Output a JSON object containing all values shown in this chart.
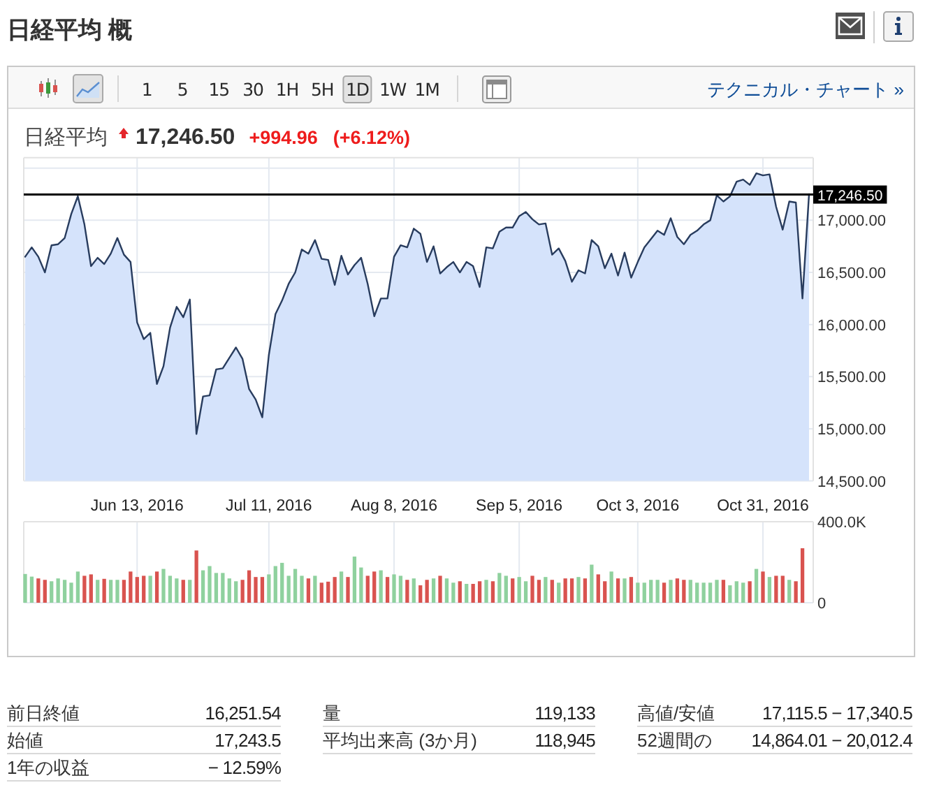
{
  "chart_data": [
    {
      "type": "area",
      "title": "日経平均 概",
      "subtitle": "日経平均",
      "annotations": [
        "17,246.50",
        "+994.96",
        "(+6.12%)",
        "1",
        "5",
        "15",
        "30",
        "1H",
        "5H",
        "1D",
        "1W",
        "1M",
        "テクニカル・チャート »"
      ],
      "categories": [
        null,
        null,
        null,
        null,
        null,
        null,
        null,
        null,
        null,
        null,
        null,
        null,
        null,
        null,
        null,
        null,
        null,
        "Jun 13, 2016",
        null,
        null,
        null,
        null,
        null,
        null,
        null,
        null,
        null,
        null,
        null,
        null,
        null,
        null,
        null,
        null,
        null,
        null,
        null,
        "Jul 11, 2016",
        null,
        null,
        null,
        null,
        null,
        null,
        null,
        null,
        null,
        null,
        null,
        null,
        null,
        null,
        null,
        null,
        null,
        null,
        "Aug 8, 2016",
        null,
        null,
        null,
        null,
        null,
        null,
        null,
        null,
        null,
        null,
        null,
        null,
        null,
        null,
        null,
        null,
        null,
        null,
        "Sep 5, 2016",
        null,
        null,
        null,
        null,
        null,
        null,
        null,
        null,
        null,
        null,
        null,
        null,
        null,
        null,
        null,
        null,
        null,
        "Oct 3, 2016",
        null,
        null,
        null,
        null,
        null,
        null,
        null,
        null,
        null,
        null,
        null,
        null,
        null,
        null,
        null,
        null,
        null,
        null,
        "Oct 31, 2016",
        null,
        null,
        null,
        null,
        null,
        null,
        null
      ],
      "series": [
        {
          "color": "#283c5e",
          "values": [
            16650,
            16740,
            16650,
            16500,
            16760,
            16770,
            16830,
            17060,
            17230,
            16960,
            16560,
            16640,
            16580,
            16680,
            16830,
            16670,
            16600,
            16020,
            15860,
            15920,
            15430,
            15600,
            15970,
            16170,
            16070,
            16240,
            14950,
            15310,
            15320,
            15570,
            15580,
            15680,
            15780,
            15670,
            15380,
            15280,
            15110,
            15710,
            16100,
            16230,
            16390,
            16500,
            16720,
            16680,
            16810,
            16630,
            16620,
            16380,
            16660,
            16480,
            16570,
            16640,
            16390,
            16080,
            16250,
            16250,
            16650,
            16760,
            16740,
            16920,
            16870,
            16600,
            16750,
            16490,
            16550,
            16600,
            16500,
            16600,
            16560,
            16360,
            16740,
            16730,
            16890,
            16930,
            16930,
            17040,
            17080,
            17010,
            16960,
            16970,
            16670,
            16730,
            16610,
            16410,
            16520,
            16490,
            16810,
            16750,
            16540,
            16680,
            16470,
            16690,
            16450,
            16600,
            16740,
            16820,
            16900,
            16860,
            17020,
            16840,
            16770,
            16860,
            16900,
            16960,
            17000,
            17240,
            17180,
            17230,
            17370,
            17390,
            17340,
            17450,
            17430,
            17440,
            17130,
            16910,
            17180,
            17170,
            16250,
            17250
          ]
        }
      ],
      "ylim": [
        14500,
        17600
      ],
      "yticks": [
        {
          "value": 14500,
          "label": "14,500.00"
        },
        {
          "value": 15000,
          "label": "15,000.00"
        },
        {
          "value": 15500,
          "label": "15,500.00"
        },
        {
          "value": 16000,
          "label": "16,000.00"
        },
        {
          "value": 16500,
          "label": "16,500.00"
        },
        {
          "value": 17000,
          "label": "17,000.00"
        },
        {
          "value": 17500,
          "label": null
        }
      ],
      "ref_lines": [
        {
          "axis": "y",
          "value": 17246.5,
          "label": "17,246.50",
          "color": "#000000"
        }
      ],
      "grid": true
    },
    {
      "type": "bar",
      "categories": [
        null,
        null,
        null,
        null,
        null,
        null,
        null,
        null,
        null,
        null,
        null,
        null,
        null,
        null,
        null,
        null,
        null,
        null,
        null,
        null,
        null,
        null,
        null,
        null,
        null,
        null,
        null,
        null,
        null,
        null,
        null,
        null,
        null,
        null,
        null,
        null,
        null,
        null,
        null,
        null,
        null,
        null,
        null,
        null,
        null,
        null,
        null,
        null,
        null,
        null,
        null,
        null,
        null,
        null,
        null,
        null,
        null,
        null,
        null,
        null,
        null,
        null,
        null,
        null,
        null,
        null,
        null,
        null,
        null,
        null,
        null,
        null,
        null,
        null,
        null,
        null,
        null,
        null,
        null,
        null,
        null,
        null,
        null,
        null,
        null,
        null,
        null,
        null,
        null,
        null,
        null,
        null,
        null,
        null,
        null,
        null,
        null,
        null,
        null,
        null,
        null,
        null,
        null,
        null,
        null,
        null,
        null,
        null,
        null,
        null,
        null,
        null,
        null,
        null,
        null,
        null,
        null,
        null,
        null,
        null
      ],
      "values": [
        142000,
        129000,
        120000,
        113000,
        106000,
        120000,
        113000,
        99000,
        154000,
        133000,
        140000,
        113000,
        118000,
        113000,
        113000,
        113000,
        154000,
        127000,
        133000,
        133000,
        154000,
        167000,
        133000,
        120000,
        113000,
        113000,
        258000,
        160000,
        181000,
        147000,
        147000,
        120000,
        106000,
        113000,
        160000,
        127000,
        127000,
        140000,
        181000,
        197000,
        133000,
        167000,
        133000,
        120000,
        133000,
        99000,
        104000,
        127000,
        154000,
        127000,
        228000,
        174000,
        133000,
        154000,
        160000,
        127000,
        140000,
        133000,
        113000,
        120000,
        86000,
        113000,
        120000,
        133000,
        120000,
        99000,
        106000,
        93000,
        93000,
        106000,
        113000,
        106000,
        147000,
        133000,
        120000,
        127000,
        106000,
        133000,
        113000,
        127000,
        113000,
        99000,
        120000,
        120000,
        127000,
        120000,
        188000,
        140000,
        106000,
        154000,
        120000,
        120000,
        127000,
        99000,
        99000,
        113000,
        113000,
        99000,
        113000,
        120000,
        113000,
        113000,
        99000,
        99000,
        99000,
        113000,
        113000,
        86000,
        106000,
        99000,
        106000,
        167000,
        154000,
        127000,
        133000,
        133000,
        113000,
        106000,
        269000,
        null
      ],
      "colors": [
        "#8fd19e",
        "#8fd19e",
        "#d9534f",
        "#d9534f",
        "#8fd19e",
        "#8fd19e",
        "#8fd19e",
        "#8fd19e",
        "#8fd19e",
        "#d9534f",
        "#d9534f",
        "#8fd19e",
        "#d9534f",
        "#8fd19e",
        "#8fd19e",
        "#d9534f",
        "#d9534f",
        "#d9534f",
        "#d9534f",
        "#8fd19e",
        "#d9534f",
        "#8fd19e",
        "#8fd19e",
        "#8fd19e",
        "#d9534f",
        "#8fd19e",
        "#d9534f",
        "#8fd19e",
        "#8fd19e",
        "#8fd19e",
        "#8fd19e",
        "#8fd19e",
        "#8fd19e",
        "#d9534f",
        "#d9534f",
        "#d9534f",
        "#d9534f",
        "#8fd19e",
        "#8fd19e",
        "#8fd19e",
        "#8fd19e",
        "#8fd19e",
        "#8fd19e",
        "#d9534f",
        "#8fd19e",
        "#d9534f",
        "#d9534f",
        "#d9534f",
        "#8fd19e",
        "#d9534f",
        "#8fd19e",
        "#8fd19e",
        "#d9534f",
        "#d9534f",
        "#8fd19e",
        "#d9534f",
        "#8fd19e",
        "#8fd19e",
        "#d9534f",
        "#8fd19e",
        "#d9534f",
        "#d9534f",
        "#8fd19e",
        "#d9534f",
        "#8fd19e",
        "#8fd19e",
        "#d9534f",
        "#8fd19e",
        "#d9534f",
        "#d9534f",
        "#8fd19e",
        "#d9534f",
        "#8fd19e",
        "#8fd19e",
        "#d9534f",
        "#8fd19e",
        "#8fd19e",
        "#d9534f",
        "#d9534f",
        "#8fd19e",
        "#d9534f",
        "#8fd19e",
        "#d9534f",
        "#d9534f",
        "#8fd19e",
        "#d9534f",
        "#8fd19e",
        "#d9534f",
        "#d9534f",
        "#8fd19e",
        "#d9534f",
        "#8fd19e",
        "#d9534f",
        "#8fd19e",
        "#8fd19e",
        "#8fd19e",
        "#8fd19e",
        "#d9534f",
        "#8fd19e",
        "#d9534f",
        "#d9534f",
        "#8fd19e",
        "#8fd19e",
        "#8fd19e",
        "#8fd19e",
        "#8fd19e",
        "#d9534f",
        "#8fd19e",
        "#8fd19e",
        "#8fd19e",
        "#d9534f",
        "#8fd19e",
        "#d9534f",
        "#8fd19e",
        "#d9534f",
        "#d9534f",
        "#8fd19e",
        "#d9534f",
        "#d9534f",
        null
      ],
      "ylim": [
        0,
        400000
      ],
      "yticks": [
        0,
        {
          "value": 400000,
          "label": "400.0K"
        }
      ],
      "tick_labels": "y",
      "grid": true
    },
    {
      "type": "other",
      "annotations": [
        "前日終値",
        "16,251.54",
        "始値",
        "17,243.5",
        "1年の収益",
        "− 12.59%",
        "量",
        "119,133",
        "平均出来高 (3か月)",
        "118,945",
        "高値/安値",
        "17,115.5 − 17,340.5",
        "52週間の",
        "14,864.01 − 20,012.4"
      ]
    }
  ]
}
